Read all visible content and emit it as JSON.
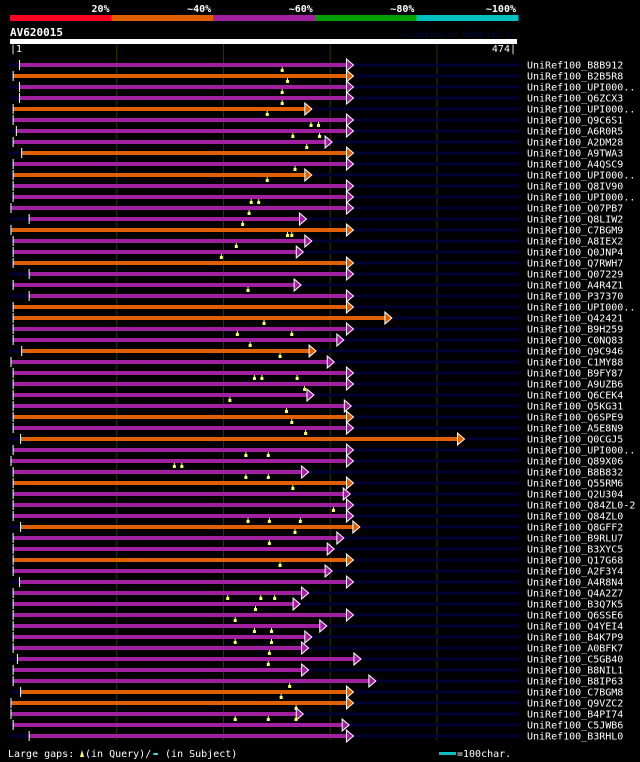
{
  "legend_scale": {
    "labels": [
      "20%",
      "~40%",
      "~60%",
      "~80%",
      "~100%"
    ],
    "colors": [
      "#ff0022",
      "#e06000",
      "#a020a0",
      "#00a000",
      "#00c0c0"
    ]
  },
  "query": {
    "name": "AV620015",
    "start": "1",
    "end": "474",
    "length": 474
  },
  "watermark": "AlignView.pm Beta rel.7",
  "colors": {
    "m": "#a020a0",
    "o": "#e06000",
    "background_line": "#000033",
    "gap": "#ffff66",
    "grid": "#333300"
  },
  "hits": [
    {
      "name": "UniRef100_B8B912",
      "start": 9,
      "end": 318,
      "color": "m",
      "gaps": [
        255
      ]
    },
    {
      "name": "UniRef100_B2B5R8",
      "start": 3,
      "end": 318,
      "color": "o",
      "gaps": [
        260
      ]
    },
    {
      "name": "UniRef100_UPI000..",
      "start": 9,
      "end": 318,
      "color": "m",
      "gaps": [
        255
      ]
    },
    {
      "name": "UniRef100_Q6ZCX3",
      "start": 9,
      "end": 318,
      "color": "m",
      "gaps": [
        255
      ]
    },
    {
      "name": "UniRef100_UPI000..",
      "start": 3,
      "end": 279,
      "color": "o",
      "gaps": [
        241
      ]
    },
    {
      "name": "UniRef100_Q9C6S1",
      "start": 3,
      "end": 318,
      "color": "m",
      "gaps": [
        282,
        289
      ]
    },
    {
      "name": "UniRef100_A6R0R5",
      "start": 6,
      "end": 318,
      "color": "m",
      "gaps": [
        265,
        290
      ]
    },
    {
      "name": "UniRef100_A2DM28",
      "start": 3,
      "end": 298,
      "color": "m",
      "gaps": [
        278
      ]
    },
    {
      "name": "UniRef100_A9TWA3",
      "start": 11,
      "end": 318,
      "color": "o",
      "gaps": []
    },
    {
      "name": "UniRef100_A4QSC9",
      "start": 3,
      "end": 318,
      "color": "m",
      "gaps": [
        267
      ]
    },
    {
      "name": "UniRef100_UPI000..",
      "start": 3,
      "end": 279,
      "color": "o",
      "gaps": [
        241
      ]
    },
    {
      "name": "UniRef100_Q8IV90",
      "start": 3,
      "end": 318,
      "color": "m",
      "gaps": []
    },
    {
      "name": "UniRef100_UPI000..",
      "start": 3,
      "end": 318,
      "color": "m",
      "gaps": [
        226,
        233
      ]
    },
    {
      "name": "UniRef100_Q07PB7",
      "start": 1,
      "end": 318,
      "color": "m",
      "gaps": [
        224
      ]
    },
    {
      "name": "UniRef100_Q8LIW2",
      "start": 18,
      "end": 274,
      "color": "m",
      "gaps": [
        218
      ]
    },
    {
      "name": "UniRef100_C7BGM9",
      "start": 1,
      "end": 318,
      "color": "o",
      "gaps": [
        260,
        264
      ]
    },
    {
      "name": "UniRef100_A8IEX2",
      "start": 3,
      "end": 279,
      "color": "m",
      "gaps": [
        212
      ]
    },
    {
      "name": "UniRef100_Q0JNP4",
      "start": 3,
      "end": 271,
      "color": "m",
      "gaps": [
        198
      ]
    },
    {
      "name": "UniRef100_Q7RWH7",
      "start": 3,
      "end": 318,
      "color": "o",
      "gaps": []
    },
    {
      "name": "UniRef100_Q07229",
      "start": 18,
      "end": 318,
      "color": "m",
      "gaps": []
    },
    {
      "name": "UniRef100_A4R4Z1",
      "start": 3,
      "end": 269,
      "color": "m",
      "gaps": [
        223
      ]
    },
    {
      "name": "UniRef100_P37370",
      "start": 18,
      "end": 318,
      "color": "m",
      "gaps": []
    },
    {
      "name": "UniRef100_UPI000..",
      "start": 3,
      "end": 318,
      "color": "o",
      "gaps": []
    },
    {
      "name": "UniRef100_Q42421",
      "start": 3,
      "end": 354,
      "color": "o",
      "gaps": [
        238
      ]
    },
    {
      "name": "UniRef100_B9H259",
      "start": 3,
      "end": 318,
      "color": "m",
      "gaps": [
        213,
        264
      ]
    },
    {
      "name": "UniRef100_C0NQ83",
      "start": 3,
      "end": 309,
      "color": "m",
      "gaps": [
        225
      ]
    },
    {
      "name": "UniRef100_Q9C946",
      "start": 11,
      "end": 283,
      "color": "o",
      "gaps": [
        253
      ]
    },
    {
      "name": "UniRef100_C1MY88",
      "start": 1,
      "end": 300,
      "color": "m",
      "gaps": []
    },
    {
      "name": "UniRef100_B9FY87",
      "start": 3,
      "end": 318,
      "color": "m",
      "gaps": [
        229,
        236,
        269
      ]
    },
    {
      "name": "UniRef100_A9UZB6",
      "start": 3,
      "end": 318,
      "color": "m",
      "gaps": [
        276
      ]
    },
    {
      "name": "UniRef100_Q6CEK4",
      "start": 3,
      "end": 281,
      "color": "m",
      "gaps": [
        206
      ]
    },
    {
      "name": "UniRef100_Q5KG31",
      "start": 3,
      "end": 316,
      "color": "m",
      "gaps": [
        259
      ]
    },
    {
      "name": "UniRef100_Q6SPE9",
      "start": 3,
      "end": 318,
      "color": "o",
      "gaps": [
        264
      ]
    },
    {
      "name": "UniRef100_A5E8N9",
      "start": 3,
      "end": 318,
      "color": "m",
      "gaps": [
        277
      ]
    },
    {
      "name": "UniRef100_Q0CGJ5",
      "start": 10,
      "end": 422,
      "color": "o",
      "gaps": []
    },
    {
      "name": "UniRef100_UPI000..",
      "start": 3,
      "end": 318,
      "color": "m",
      "gaps": [
        221,
        242
      ]
    },
    {
      "name": "UniRef100_Q89X06",
      "start": 1,
      "end": 318,
      "color": "m",
      "gaps": [
        154,
        161
      ]
    },
    {
      "name": "UniRef100_B8B832",
      "start": 3,
      "end": 276,
      "color": "m",
      "gaps": [
        221,
        242
      ]
    },
    {
      "name": "UniRef100_Q55RM6",
      "start": 3,
      "end": 318,
      "color": "o",
      "gaps": [
        265
      ]
    },
    {
      "name": "UniRef100_Q2U304",
      "start": 3,
      "end": 315,
      "color": "m",
      "gaps": []
    },
    {
      "name": "UniRef100_Q84ZL0-2",
      "start": 3,
      "end": 318,
      "color": "m",
      "gaps": [
        303
      ]
    },
    {
      "name": "UniRef100_Q84ZL0",
      "start": 3,
      "end": 318,
      "color": "m",
      "gaps": [
        223,
        243,
        272
      ]
    },
    {
      "name": "UniRef100_Q8GFF2",
      "start": 10,
      "end": 324,
      "color": "o",
      "gaps": [
        267
      ]
    },
    {
      "name": "UniRef100_B9RLU7",
      "start": 3,
      "end": 309,
      "color": "m",
      "gaps": [
        243
      ]
    },
    {
      "name": "UniRef100_B3XYC5",
      "start": 3,
      "end": 300,
      "color": "m",
      "gaps": []
    },
    {
      "name": "UniRef100_Q17G68",
      "start": 3,
      "end": 318,
      "color": "o",
      "gaps": [
        253
      ]
    },
    {
      "name": "UniRef100_A2F3Y4",
      "start": 3,
      "end": 298,
      "color": "m",
      "gaps": []
    },
    {
      "name": "UniRef100_A4R8N4",
      "start": 9,
      "end": 318,
      "color": "m",
      "gaps": []
    },
    {
      "name": "UniRef100_Q4A2Z7",
      "start": 3,
      "end": 276,
      "color": "m",
      "gaps": [
        204,
        235,
        248
      ]
    },
    {
      "name": "UniRef100_B3Q7K5",
      "start": 3,
      "end": 268,
      "color": "m",
      "gaps": [
        230
      ]
    },
    {
      "name": "UniRef100_Q6SSE6",
      "start": 3,
      "end": 318,
      "color": "m",
      "gaps": [
        211
      ]
    },
    {
      "name": "UniRef100_Q4YEI4",
      "start": 3,
      "end": 293,
      "color": "m",
      "gaps": [
        229,
        245
      ]
    },
    {
      "name": "UniRef100_B4K7P9",
      "start": 3,
      "end": 279,
      "color": "m",
      "gaps": [
        211,
        245
      ]
    },
    {
      "name": "UniRef100_A0BFK7",
      "start": 3,
      "end": 276,
      "color": "m",
      "gaps": [
        243
      ]
    },
    {
      "name": "UniRef100_C5GB40",
      "start": 7,
      "end": 325,
      "color": "m",
      "gaps": [
        242
      ]
    },
    {
      "name": "UniRef100_B8NIL1",
      "start": 3,
      "end": 276,
      "color": "m",
      "gaps": []
    },
    {
      "name": "UniRef100_B8IP63",
      "start": 3,
      "end": 339,
      "color": "m",
      "gaps": [
        262
      ]
    },
    {
      "name": "UniRef100_C7BGM8",
      "start": 10,
      "end": 318,
      "color": "o",
      "gaps": [
        254
      ]
    },
    {
      "name": "UniRef100_Q9VZC2",
      "start": 1,
      "end": 318,
      "color": "o",
      "gaps": [
        268
      ]
    },
    {
      "name": "UniRef100_B4PI74",
      "start": 1,
      "end": 271,
      "color": "m",
      "gaps": [
        211,
        242,
        268
      ]
    },
    {
      "name": "UniRef100_C5JWB6",
      "start": 3,
      "end": 314,
      "color": "m",
      "gaps": []
    },
    {
      "name": "UniRef100_B3RHL0",
      "start": 18,
      "end": 318,
      "color": "m",
      "gaps": []
    }
  ],
  "footer": {
    "gaps_label": "Large gaps:",
    "query_gap": "(in Query)/",
    "subject_gap": "- (in Subject)",
    "scale_label": "=100char."
  }
}
